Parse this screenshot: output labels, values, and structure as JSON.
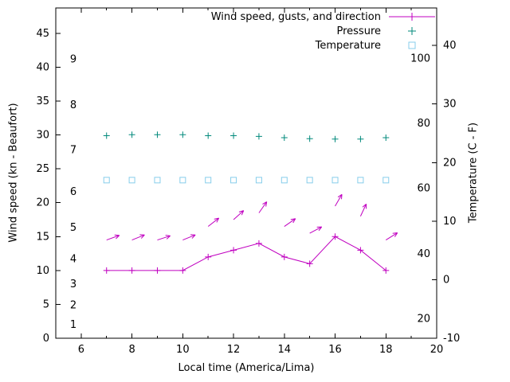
{
  "chart_data": {
    "type": "line",
    "title": "",
    "xlabel": "Local time (America/Lima)",
    "ylabel_left": "Wind speed (kn - Beaufort)",
    "ylabel_right": "Temperature (C - F)",
    "x": [
      7,
      8,
      9,
      10,
      11,
      12,
      13,
      14,
      15,
      16,
      17,
      18
    ],
    "xlim": [
      5,
      20
    ],
    "x_major_ticks": [
      6,
      8,
      10,
      12,
      14,
      16,
      18,
      20
    ],
    "x_minor_ticks": [
      7,
      9,
      11,
      13,
      15,
      17,
      19
    ],
    "grid": false,
    "legend_position": "top-right-inside",
    "left_axis": {
      "unit": "kn",
      "lim": [
        0,
        48.75
      ],
      "ticks_kn": [
        0,
        5,
        10,
        15,
        20,
        25,
        30,
        35,
        40,
        45
      ],
      "beaufort_labels": [
        {
          "label": "1",
          "kn": 2
        },
        {
          "label": "2",
          "kn": 4.9
        },
        {
          "label": "3",
          "kn": 8
        },
        {
          "label": "4",
          "kn": 11.7
        },
        {
          "label": "5",
          "kn": 16.3
        },
        {
          "label": "6",
          "kn": 21.6
        },
        {
          "label": "7",
          "kn": 27.8
        },
        {
          "label": "8",
          "kn": 34.4
        },
        {
          "label": "9",
          "kn": 41.2
        }
      ]
    },
    "right_axis": {
      "unit": "C",
      "lim_c": [
        -10,
        46.4
      ],
      "ticks_c": [
        -10,
        0,
        10,
        20,
        30,
        40
      ],
      "fahrenheit_labels": [
        {
          "label": "20",
          "c": -6.7
        },
        {
          "label": "40",
          "c": 4.4
        },
        {
          "label": "60",
          "c": 15.6
        },
        {
          "label": "80",
          "c": 26.7
        },
        {
          "label": "100",
          "c": 37.8
        }
      ]
    },
    "series": [
      {
        "name": "Wind speed, gusts, and direction",
        "style": "linespoints",
        "marker": "plus",
        "color": "#c000c0",
        "axis": "left",
        "values": [
          10,
          10,
          10,
          10,
          12,
          13,
          14,
          12,
          11,
          15,
          13,
          10
        ]
      },
      {
        "name": "Wind gusts direction arrows",
        "style": "vectors",
        "color": "#c000c0",
        "axis": "left",
        "in_legend": false,
        "values": [
          14.5,
          14.5,
          14.5,
          14.5,
          16.5,
          17.5,
          18.5,
          16.5,
          15.5,
          19.5,
          18,
          14.5
        ],
        "angles_deg": [
          20,
          22,
          18,
          22,
          38,
          42,
          55,
          35,
          28,
          60,
          65,
          32
        ]
      },
      {
        "name": "Pressure",
        "style": "points",
        "marker": "plus",
        "color": "#00897b",
        "axis": "left",
        "values": [
          29.9,
          30.05,
          30.05,
          30.05,
          29.9,
          29.9,
          29.8,
          29.6,
          29.45,
          29.4,
          29.4,
          29.6
        ]
      },
      {
        "name": "Temperature",
        "style": "points",
        "marker": "open-square",
        "color": "#87ceeb",
        "axis": "right",
        "values": [
          17,
          17,
          17,
          17,
          17,
          17,
          17,
          17,
          17,
          17,
          17,
          17
        ]
      }
    ],
    "colors": {
      "axis": "#000000",
      "background": "#ffffff",
      "wind": "#c000c0",
      "pressure": "#00897b",
      "temperature": "#87ceeb"
    }
  }
}
